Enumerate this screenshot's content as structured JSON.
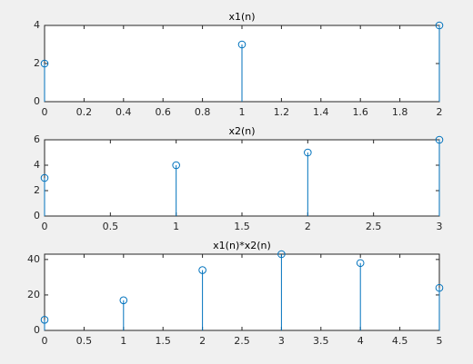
{
  "chart_data": [
    {
      "type": "stem",
      "title": "x1(n)",
      "x": [
        0,
        1,
        2
      ],
      "values": [
        2,
        3,
        4
      ],
      "color": "#0072bd",
      "xlim": [
        0,
        2
      ],
      "ylim": [
        0,
        4
      ],
      "xticks": [
        0,
        0.2,
        0.4,
        0.6,
        0.8,
        1,
        1.2,
        1.4,
        1.6,
        1.8,
        2
      ],
      "yticks": [
        0,
        2,
        4
      ]
    },
    {
      "type": "stem",
      "title": "x2(n)",
      "x": [
        0,
        1,
        2,
        3
      ],
      "values": [
        3,
        4,
        5,
        6
      ],
      "color": "#0072bd",
      "xlim": [
        0,
        3
      ],
      "ylim": [
        0,
        6
      ],
      "xticks": [
        0,
        0.5,
        1,
        1.5,
        2,
        2.5,
        3
      ],
      "yticks": [
        0,
        2,
        4,
        6
      ]
    },
    {
      "type": "stem",
      "title": "x1(n)*x2(n)",
      "x": [
        0,
        1,
        2,
        3,
        4,
        5
      ],
      "values": [
        6,
        17,
        34,
        43,
        38,
        24
      ],
      "color": "#0072bd",
      "xlim": [
        0,
        5
      ],
      "ylim": [
        0,
        43
      ],
      "xticks": [
        0,
        0.5,
        1,
        1.5,
        2,
        2.5,
        3,
        3.5,
        4,
        4.5,
        5
      ],
      "yticks": [
        0,
        20,
        40
      ]
    }
  ]
}
